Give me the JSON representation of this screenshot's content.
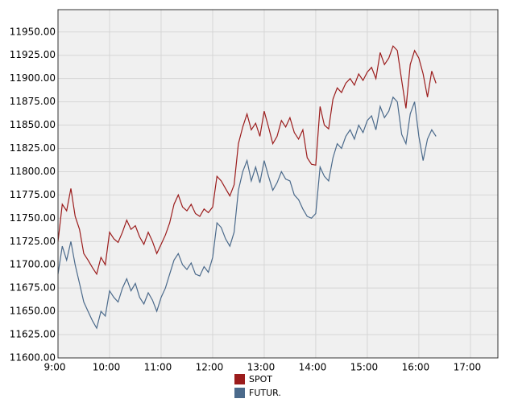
{
  "chart_data": {
    "type": "line",
    "x": [
      540,
      545,
      550,
      555,
      560,
      565,
      570,
      575,
      580,
      585,
      590,
      595,
      600,
      605,
      610,
      615,
      620,
      625,
      630,
      635,
      640,
      645,
      650,
      655,
      660,
      665,
      670,
      675,
      680,
      685,
      690,
      695,
      700,
      705,
      710,
      715,
      720,
      725,
      730,
      735,
      740,
      745,
      750,
      755,
      760,
      765,
      770,
      775,
      780,
      785,
      790,
      795,
      800,
      805,
      810,
      815,
      820,
      825,
      830,
      835,
      840,
      845,
      850,
      855,
      860,
      865,
      870,
      875,
      880,
      885,
      890,
      895,
      900,
      905,
      910,
      915,
      920,
      925,
      930,
      935,
      940,
      945,
      950,
      955,
      960,
      965,
      970,
      975,
      980
    ],
    "series": [
      {
        "name": "SPOT",
        "color": "#9b1c1c",
        "values": [
          11725,
          11765,
          11758,
          11782,
          11752,
          11738,
          11712,
          11705,
          11697,
          11690,
          11708,
          11700,
          11735,
          11728,
          11724,
          11735,
          11748,
          11738,
          11742,
          11730,
          11722,
          11735,
          11725,
          11712,
          11722,
          11732,
          11745,
          11765,
          11775,
          11762,
          11758,
          11765,
          11755,
          11752,
          11760,
          11756,
          11762,
          11795,
          11790,
          11782,
          11774,
          11786,
          11830,
          11848,
          11862,
          11845,
          11852,
          11838,
          11865,
          11848,
          11830,
          11838,
          11855,
          11848,
          11858,
          11842,
          11835,
          11845,
          11815,
          11808,
          11807,
          11870,
          11850,
          11846,
          11878,
          11890,
          11885,
          11895,
          11900,
          11893,
          11905,
          11898,
          11907,
          11912,
          11900,
          11928,
          11915,
          11922,
          11935,
          11930,
          11898,
          11868,
          11915,
          11930,
          11922,
          11905,
          11880,
          11908,
          11895
        ]
      },
      {
        "name": "FUTUR.",
        "color": "#4b6a8b",
        "values": [
          11690,
          11720,
          11705,
          11725,
          11700,
          11680,
          11660,
          11650,
          11640,
          11632,
          11650,
          11645,
          11672,
          11665,
          11660,
          11675,
          11685,
          11672,
          11680,
          11665,
          11658,
          11670,
          11662,
          11650,
          11665,
          11675,
          11690,
          11705,
          11712,
          11700,
          11695,
          11702,
          11690,
          11688,
          11698,
          11692,
          11708,
          11745,
          11740,
          11728,
          11720,
          11735,
          11780,
          11800,
          11812,
          11790,
          11805,
          11788,
          11812,
          11795,
          11780,
          11788,
          11800,
          11792,
          11790,
          11775,
          11770,
          11760,
          11752,
          11750,
          11755,
          11805,
          11795,
          11790,
          11815,
          11830,
          11825,
          11838,
          11845,
          11835,
          11850,
          11842,
          11855,
          11860,
          11845,
          11870,
          11858,
          11865,
          11880,
          11875,
          11840,
          11830,
          11862,
          11875,
          11838,
          11812,
          11835,
          11845,
          11838
        ]
      }
    ],
    "xlim": [
      540,
      1052
    ],
    "xticks": [
      {
        "value": 540,
        "label": "9:00"
      },
      {
        "value": 600,
        "label": "10:00"
      },
      {
        "value": 660,
        "label": "11:00"
      },
      {
        "value": 720,
        "label": "12:00"
      },
      {
        "value": 780,
        "label": "13:00"
      },
      {
        "value": 840,
        "label": "14:00"
      },
      {
        "value": 900,
        "label": "15:00"
      },
      {
        "value": 960,
        "label": "16:00"
      },
      {
        "value": 1020,
        "label": "17:00"
      }
    ],
    "ylim": [
      11600,
      11974
    ],
    "yticks": [
      {
        "value": 11600,
        "label": "11600.00"
      },
      {
        "value": 11625,
        "label": "11625.00"
      },
      {
        "value": 11650,
        "label": "11650.00"
      },
      {
        "value": 11675,
        "label": "11675.00"
      },
      {
        "value": 11700,
        "label": "11700.00"
      },
      {
        "value": 11725,
        "label": "11725.00"
      },
      {
        "value": 11750,
        "label": "11750.00"
      },
      {
        "value": 11775,
        "label": "11775.00"
      },
      {
        "value": 11800,
        "label": "11800.00"
      },
      {
        "value": 11825,
        "label": "11825.00"
      },
      {
        "value": 11850,
        "label": "11850.00"
      },
      {
        "value": 11875,
        "label": "11875.00"
      },
      {
        "value": 11900,
        "label": "11900.00"
      },
      {
        "value": 11925,
        "label": "11925.00"
      },
      {
        "value": 11950,
        "label": "11950.00"
      }
    ],
    "grid": true
  }
}
